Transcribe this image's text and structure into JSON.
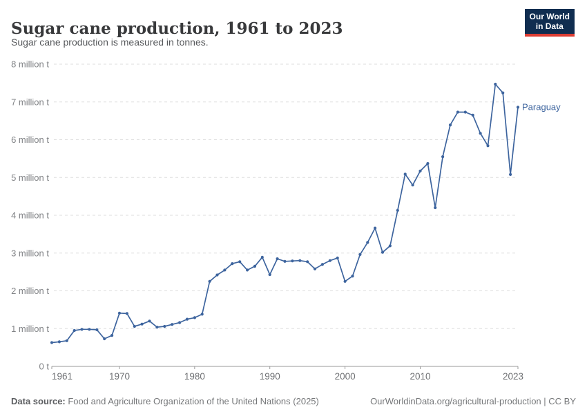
{
  "header": {
    "title": "Sugar cane production, 1961 to 2023",
    "subtitle": "Sugar cane production is measured in tonnes."
  },
  "logo": {
    "line1": "Our World",
    "line2": "in Data",
    "bg_color": "#102d50",
    "accent_color": "#dc3d33"
  },
  "chart_data": {
    "type": "line",
    "title": "Sugar cane production, 1961 to 2023",
    "xlabel": "",
    "ylabel": "",
    "xlim": [
      1961,
      2023
    ],
    "ylim": [
      0,
      8000000
    ],
    "grid": "horizontal-dashed",
    "x_ticks": [
      1961,
      1970,
      1980,
      1990,
      2000,
      2010,
      2023
    ],
    "y_ticks": [
      0,
      1,
      2,
      3,
      4,
      5,
      6,
      7,
      8
    ],
    "y_tick_labels": [
      "0 t",
      "1 million t",
      "2 million t",
      "3 million t",
      "4 million t",
      "5 million t",
      "6 million t",
      "7 million t",
      "8 million t"
    ],
    "legend_position": "end-of-line-label",
    "series": [
      {
        "name": "Paraguay",
        "color": "#3d649e",
        "unit": "tonnes",
        "x": [
          1961,
          1962,
          1963,
          1964,
          1965,
          1966,
          1967,
          1968,
          1969,
          1970,
          1971,
          1972,
          1973,
          1974,
          1975,
          1976,
          1977,
          1978,
          1979,
          1980,
          1981,
          1982,
          1983,
          1984,
          1985,
          1986,
          1987,
          1988,
          1989,
          1990,
          1991,
          1992,
          1993,
          1994,
          1995,
          1996,
          1997,
          1998,
          1999,
          2000,
          2001,
          2002,
          2003,
          2004,
          2005,
          2006,
          2007,
          2008,
          2009,
          2010,
          2011,
          2012,
          2013,
          2014,
          2015,
          2016,
          2017,
          2018,
          2019,
          2020,
          2021,
          2022,
          2023
        ],
        "values_million_t": [
          0.63,
          0.65,
          0.68,
          0.95,
          0.98,
          0.98,
          0.97,
          0.73,
          0.82,
          1.41,
          1.4,
          1.06,
          1.12,
          1.2,
          1.04,
          1.06,
          1.11,
          1.16,
          1.25,
          1.29,
          1.38,
          2.25,
          2.42,
          2.55,
          2.72,
          2.77,
          2.55,
          2.65,
          2.89,
          2.43,
          2.85,
          2.78,
          2.79,
          2.8,
          2.77,
          2.58,
          2.7,
          2.8,
          2.87,
          2.25,
          2.39,
          2.96,
          3.28,
          3.66,
          3.02,
          3.19,
          4.13,
          5.09,
          4.8,
          5.17,
          5.37,
          4.2,
          5.55,
          6.39,
          6.73,
          6.73,
          6.65,
          6.17,
          5.84,
          7.47,
          7.24,
          5.08,
          6.86
        ]
      }
    ],
    "colors": {
      "gridline": "#dddddd",
      "axis": "#999999",
      "y_tick_label": "#818386",
      "x_tick_label": "#6e7073"
    }
  },
  "footer": {
    "source_label": "Data source:",
    "source_text": " Food and Agriculture Organization of the United Nations (2025)",
    "credit": "OurWorldinData.org/agricultural-production | CC BY"
  }
}
